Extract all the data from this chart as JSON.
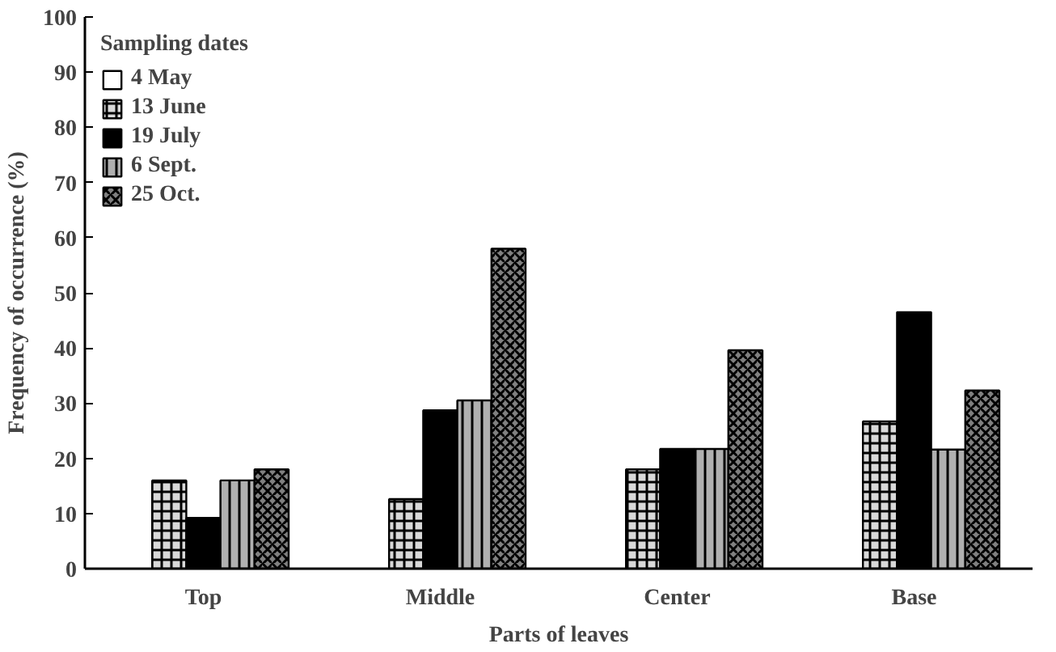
{
  "chart_data": {
    "type": "bar",
    "xlabel": "Parts of leaves",
    "ylabel": "Frequency of occurrence (%)",
    "legend_title": "Sampling dates",
    "categories": [
      "Top",
      "Middle",
      "Center",
      "Base"
    ],
    "series": [
      {
        "name": "4 May",
        "color": "#ffffff",
        "values": [
          0,
          0,
          0,
          0
        ]
      },
      {
        "name": "13 June",
        "color": "#d9d9d9",
        "values": [
          16,
          12.6,
          18,
          26.7
        ]
      },
      {
        "name": "19 July",
        "color": "#000000",
        "values": [
          9.2,
          28.7,
          21.7,
          46.5
        ]
      },
      {
        "name": "6 Sept.",
        "color": "#b0b0b0",
        "values": [
          16,
          30.5,
          21.7,
          21.6
        ]
      },
      {
        "name": "25 Oct.",
        "color": "#808080",
        "values": [
          18,
          58,
          39.6,
          32.3
        ]
      }
    ],
    "ylim": [
      0,
      100
    ],
    "yticks": [
      0,
      10,
      20,
      30,
      40,
      50,
      60,
      70,
      80,
      90,
      100
    ],
    "grid": false,
    "legend": "top left"
  }
}
